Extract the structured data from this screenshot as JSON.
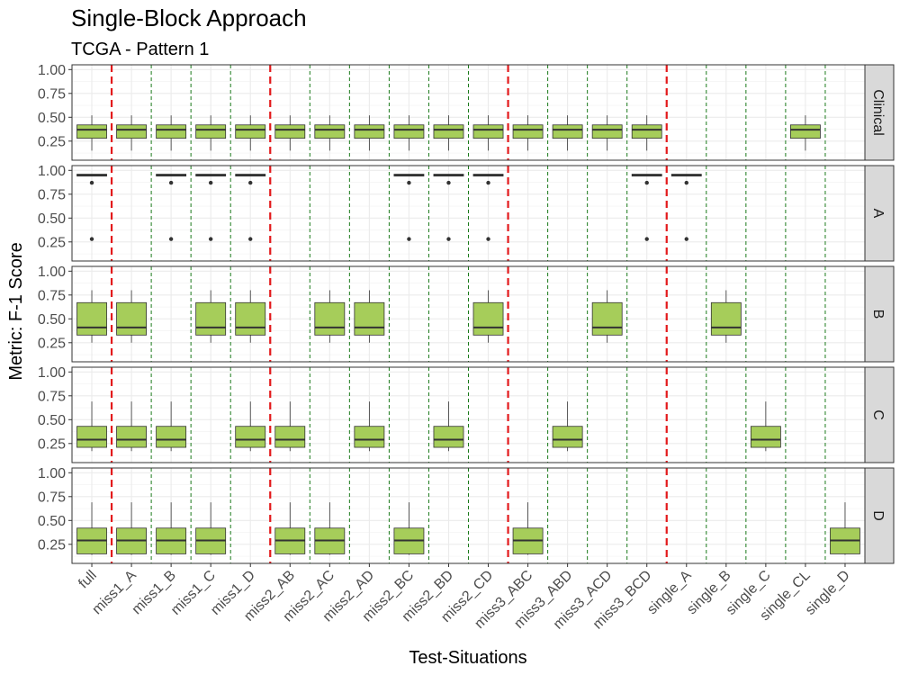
{
  "chart_data": {
    "type": "boxplot",
    "title": "Single-Block Approach",
    "subtitle": "TCGA - Pattern 1",
    "xlabel": "Test-Situations",
    "ylabel": "Metric: F-1 Score",
    "ylim": [
      0.05,
      1.05
    ],
    "y_ticks": [
      "0.25",
      "0.50",
      "0.75",
      "1.00"
    ],
    "grid": true,
    "fill_color": "#a6cd5a",
    "group_separator_color": "#e31a1c",
    "minor_separator_color": "#1b7a1b",
    "categories": [
      "full",
      "miss1_A",
      "miss1_B",
      "miss1_C",
      "miss1_D",
      "miss2_AB",
      "miss2_AC",
      "miss2_AD",
      "miss2_BC",
      "miss2_BD",
      "miss2_CD",
      "miss3_ABC",
      "miss3_ABD",
      "miss3_ACD",
      "miss3_BCD",
      "single_A",
      "single_B",
      "single_C",
      "single_CL",
      "single_D"
    ],
    "group_boundaries_after": [
      "full",
      "miss1_D",
      "miss2_CD",
      "miss3_BCD"
    ],
    "panels": [
      {
        "name": "Clinical",
        "stats": {
          "min": 0.15,
          "q1": 0.28,
          "median": 0.37,
          "q3": 0.42,
          "max": 0.52,
          "outliers": []
        },
        "present": [
          "full",
          "miss1_A",
          "miss1_B",
          "miss1_C",
          "miss1_D",
          "miss2_AB",
          "miss2_AC",
          "miss2_AD",
          "miss2_BC",
          "miss2_BD",
          "miss2_CD",
          "miss3_ABC",
          "miss3_ABD",
          "miss3_ACD",
          "miss3_BCD",
          "single_CL"
        ]
      },
      {
        "name": "A",
        "stats": {
          "min": 0.94,
          "q1": 0.94,
          "median": 0.95,
          "q3": 0.96,
          "max": 0.96,
          "outliers": [
            0.87,
            0.28
          ]
        },
        "present": [
          "full",
          "miss1_B",
          "miss1_C",
          "miss1_D",
          "miss2_BC",
          "miss2_BD",
          "miss2_CD",
          "miss3_BCD",
          "single_A"
        ]
      },
      {
        "name": "B",
        "stats": {
          "min": 0.25,
          "q1": 0.33,
          "median": 0.41,
          "q3": 0.67,
          "max": 0.8,
          "outliers": []
        },
        "present": [
          "full",
          "miss1_A",
          "miss1_C",
          "miss1_D",
          "miss2_AC",
          "miss2_AD",
          "miss2_CD",
          "miss3_ACD",
          "single_B"
        ]
      },
      {
        "name": "C",
        "stats": {
          "min": 0.17,
          "q1": 0.21,
          "median": 0.29,
          "q3": 0.43,
          "max": 0.69,
          "outliers": []
        },
        "present": [
          "full",
          "miss1_A",
          "miss1_B",
          "miss1_D",
          "miss2_AB",
          "miss2_AD",
          "miss2_BD",
          "miss3_ABD",
          "single_C"
        ]
      },
      {
        "name": "D",
        "stats": {
          "min": 0.14,
          "q1": 0.15,
          "median": 0.29,
          "q3": 0.42,
          "max": 0.69,
          "outliers": []
        },
        "present": [
          "full",
          "miss1_A",
          "miss1_B",
          "miss1_C",
          "miss2_AB",
          "miss2_AC",
          "miss2_BC",
          "miss3_ABC",
          "single_D"
        ]
      }
    ]
  }
}
